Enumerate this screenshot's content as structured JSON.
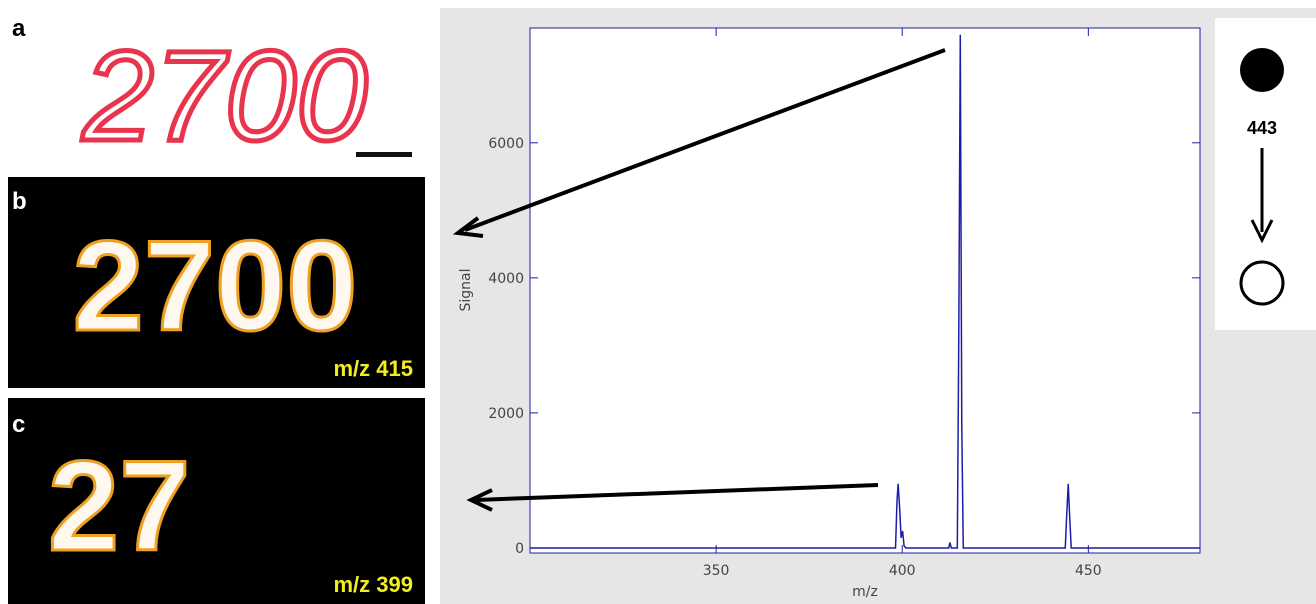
{
  "panels": [
    {
      "label": "a",
      "image_text": "2700"
    },
    {
      "label": "b",
      "image_text": "2700",
      "caption": "m/z 415"
    },
    {
      "label": "c",
      "image_text": "27",
      "caption": "m/z 399"
    }
  ],
  "scheme": {
    "label": "443"
  },
  "chart_data": {
    "type": "line",
    "x_label": "m/z",
    "y_label": "Signal",
    "x": [
      300,
      398.2,
      398.6,
      398.9,
      399.3,
      399.7,
      400.1,
      400.5,
      401,
      412.5,
      412.8,
      413.2,
      414.8,
      415.2,
      415.6,
      416.0,
      416.4,
      443.8,
      444.2,
      444.6,
      445.0,
      445.4,
      480
    ],
    "series": [
      {
        "color": "#1c1ca8",
        "values": [
          0,
          0,
          700,
          950,
          600,
          150,
          250,
          30,
          0,
          0,
          80,
          0,
          0,
          3200,
          7600,
          1800,
          0,
          0,
          500,
          950,
          450,
          0,
          0
        ]
      }
    ],
    "xlim": [
      300,
      480
    ],
    "xticks": [
      350,
      400,
      450
    ],
    "ylim": [
      -75,
      7700
    ],
    "yticks": [
      0,
      2000,
      4000,
      6000
    ]
  }
}
